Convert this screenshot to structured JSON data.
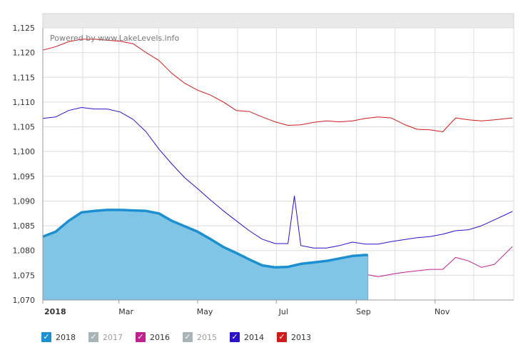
{
  "chart_data": {
    "type": "line",
    "watermark": "Powered by www.LakeLevels.info",
    "ylim": [
      1070,
      1125
    ],
    "y_ticks": [
      1070,
      1075,
      1080,
      1085,
      1090,
      1095,
      1100,
      1105,
      1110,
      1115,
      1120,
      1125
    ],
    "y_tick_labels": [
      "1,070",
      "1,075",
      "1,080",
      "1,085",
      "1,090",
      "1,095",
      "1,100",
      "1,105",
      "1,110",
      "1,115",
      "1,120",
      "1,125"
    ],
    "xlim": [
      "Jan 1",
      "Dec 31"
    ],
    "x_tick_labels": [
      {
        "label": "2018",
        "day": 0
      },
      {
        "label": "Mar",
        "day": 59
      },
      {
        "label": "May",
        "day": 120
      },
      {
        "label": "Jul",
        "day": 181
      },
      {
        "label": "Sep",
        "day": 243
      },
      {
        "label": "Nov",
        "day": 304
      }
    ],
    "grid": true,
    "legend_position": "bottom",
    "legend": [
      {
        "label": "2018",
        "color": "#1b8fcf",
        "enabled": true
      },
      {
        "label": "2017",
        "color": "#a8b4b8",
        "enabled": false
      },
      {
        "label": "2016",
        "color": "#c0208f",
        "enabled": true
      },
      {
        "label": "2015",
        "color": "#a8b4b8",
        "enabled": false
      },
      {
        "label": "2014",
        "color": "#2a12c8",
        "enabled": true
      },
      {
        "label": "2013",
        "color": "#d11a1a",
        "enabled": true
      }
    ],
    "series": [
      {
        "name": "2013",
        "color": "#d11a1a",
        "style": "line",
        "x": [
          0,
          10,
          20,
          30,
          40,
          50,
          60,
          70,
          80,
          90,
          100,
          110,
          120,
          130,
          140,
          150,
          160,
          170,
          180,
          190,
          200,
          210,
          220,
          230,
          240,
          250,
          260,
          270,
          280,
          290,
          300,
          310,
          320,
          330,
          340,
          350,
          364
        ],
        "y": [
          1120.5,
          1121.2,
          1122.2,
          1122.7,
          1122.7,
          1122.5,
          1122.3,
          1121.8,
          1120,
          1118.4,
          1115.8,
          1113.8,
          1112.4,
          1111.4,
          1110,
          1108.3,
          1108.1,
          1107,
          1106,
          1105.3,
          1105.4,
          1105.9,
          1106.2,
          1106,
          1106.2,
          1106.7,
          1107,
          1106.8,
          1105.5,
          1104.5,
          1104.4,
          1104,
          1106.8,
          1106.4,
          1106.2,
          1106.4,
          1106.8
        ]
      },
      {
        "name": "2014",
        "color": "#2a12c8",
        "style": "line",
        "x": [
          0,
          10,
          20,
          30,
          40,
          50,
          60,
          70,
          80,
          90,
          100,
          110,
          120,
          130,
          140,
          150,
          160,
          170,
          180,
          190,
          195,
          200,
          210,
          220,
          230,
          240,
          250,
          260,
          270,
          280,
          290,
          300,
          310,
          320,
          330,
          340,
          350,
          364
        ],
        "y": [
          1106.7,
          1107,
          1108.3,
          1108.9,
          1108.6,
          1108.6,
          1108,
          1106.5,
          1104,
          1100.5,
          1097.5,
          1094.7,
          1092.5,
          1090.2,
          1088,
          1086,
          1084,
          1082.3,
          1081.4,
          1081.4,
          1091,
          1081,
          1080.5,
          1080.5,
          1081,
          1081.7,
          1081.3,
          1081.3,
          1081.8,
          1082.2,
          1082.6,
          1082.8,
          1083.3,
          1084,
          1084.2,
          1085,
          1086.2,
          1087.9
        ]
      },
      {
        "name": "2016",
        "color": "#c0208f",
        "style": "line",
        "x": [
          0,
          10,
          20,
          30,
          40,
          50,
          60,
          70,
          80,
          90,
          100,
          110,
          120,
          130,
          140,
          150,
          160,
          170,
          180,
          190,
          200,
          210,
          220,
          230,
          240,
          250,
          260,
          270,
          280,
          290,
          300,
          310,
          320,
          330,
          340,
          350,
          364
        ],
        "y": [
          1081,
          1082,
          1083.3,
          1083.9,
          1084.4,
          1084.4,
          1083.8,
          1082.8,
          1081.5,
          1080.3,
          1078.8,
          1077.5,
          1076,
          1075,
          1074.5,
          1073.9,
          1073.2,
          1072.6,
          1072,
          1071.9,
          1072.3,
          1072.2,
          1073.2,
          1074.2,
          1074.8,
          1075.2,
          1074.7,
          1075.2,
          1075.6,
          1075.9,
          1076.2,
          1076.2,
          1078.6,
          1077.9,
          1076.6,
          1077.2,
          1080.8
        ]
      },
      {
        "name": "2018",
        "color": "#1b8fcf",
        "fill": "#80c4e6",
        "style": "area",
        "x": [
          0,
          10,
          20,
          30,
          40,
          50,
          60,
          70,
          80,
          90,
          100,
          110,
          120,
          130,
          140,
          150,
          160,
          170,
          180,
          190,
          200,
          210,
          220,
          230,
          240,
          250,
          252
        ],
        "y": [
          1082.8,
          1083.8,
          1086,
          1087.7,
          1088,
          1088.2,
          1088.2,
          1088.1,
          1088,
          1087.5,
          1086,
          1084.9,
          1083.8,
          1082.3,
          1080.7,
          1079.5,
          1078.2,
          1077,
          1076.6,
          1076.7,
          1077.3,
          1077.6,
          1077.9,
          1078.4,
          1078.9,
          1079.1,
          1079.1
        ]
      }
    ]
  }
}
